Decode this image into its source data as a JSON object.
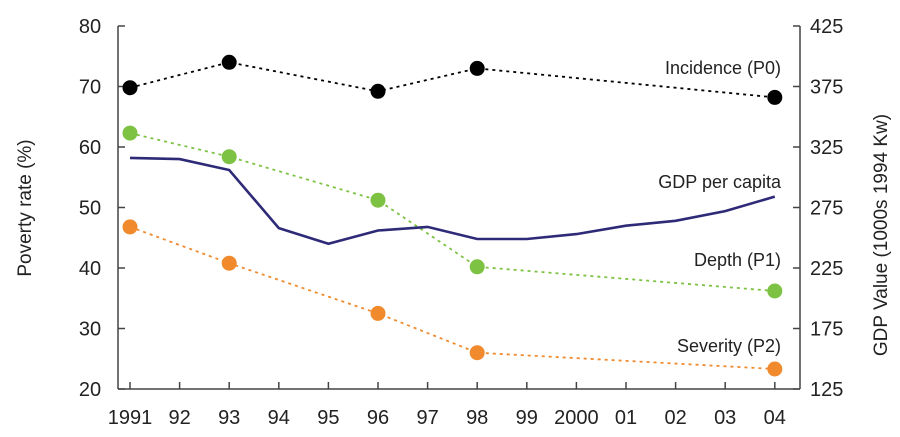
{
  "chart_data": {
    "type": "line",
    "x_tick_labels": [
      "1991",
      "92",
      "93",
      "94",
      "95",
      "96",
      "97",
      "98",
      "99",
      "2000",
      "01",
      "02",
      "03",
      "04"
    ],
    "y_left": {
      "label": "Poverty rate (%)",
      "lim": [
        20,
        80
      ],
      "ticks": [
        20,
        30,
        40,
        50,
        60,
        70,
        80
      ]
    },
    "y_right": {
      "label": "GDP Value (1000s 1994 Kw)",
      "lim": [
        125,
        425
      ],
      "ticks": [
        125,
        175,
        225,
        275,
        325,
        375,
        425
      ]
    },
    "grid": false,
    "legend": "inline-labels",
    "series": [
      {
        "name": "Incidence (P0)",
        "axis": "left",
        "style": "dotted-markers",
        "color": "#000000",
        "points": [
          [
            1991,
            69.8
          ],
          [
            1993,
            74.0
          ],
          [
            1996,
            69.2
          ],
          [
            1998,
            73.0
          ],
          [
            2004,
            68.2
          ]
        ]
      },
      {
        "name": "Depth (P1)",
        "axis": "left",
        "style": "dotted-markers",
        "color": "#7dc242",
        "points": [
          [
            1991,
            62.3
          ],
          [
            1993,
            58.4
          ],
          [
            1996,
            51.2
          ],
          [
            1998,
            40.2
          ],
          [
            2004,
            36.2
          ]
        ]
      },
      {
        "name": "Severity (P2)",
        "axis": "left",
        "style": "dotted-markers",
        "color": "#f08a2c",
        "points": [
          [
            1991,
            46.8
          ],
          [
            1993,
            40.8
          ],
          [
            1996,
            32.5
          ],
          [
            1998,
            26.0
          ],
          [
            2004,
            23.3
          ]
        ]
      },
      {
        "name": "GDP per capita",
        "axis": "right",
        "style": "solid",
        "color": "#2e2a78",
        "points": [
          [
            1991,
            316
          ],
          [
            1992,
            315
          ],
          [
            1993,
            306
          ],
          [
            1994,
            258
          ],
          [
            1995,
            245
          ],
          [
            1996,
            256
          ],
          [
            1997,
            259
          ],
          [
            1998,
            249
          ],
          [
            1999,
            249
          ],
          [
            2000,
            253
          ],
          [
            2001,
            260
          ],
          [
            2002,
            264
          ],
          [
            2003,
            272
          ],
          [
            2004,
            284
          ]
        ]
      }
    ]
  }
}
